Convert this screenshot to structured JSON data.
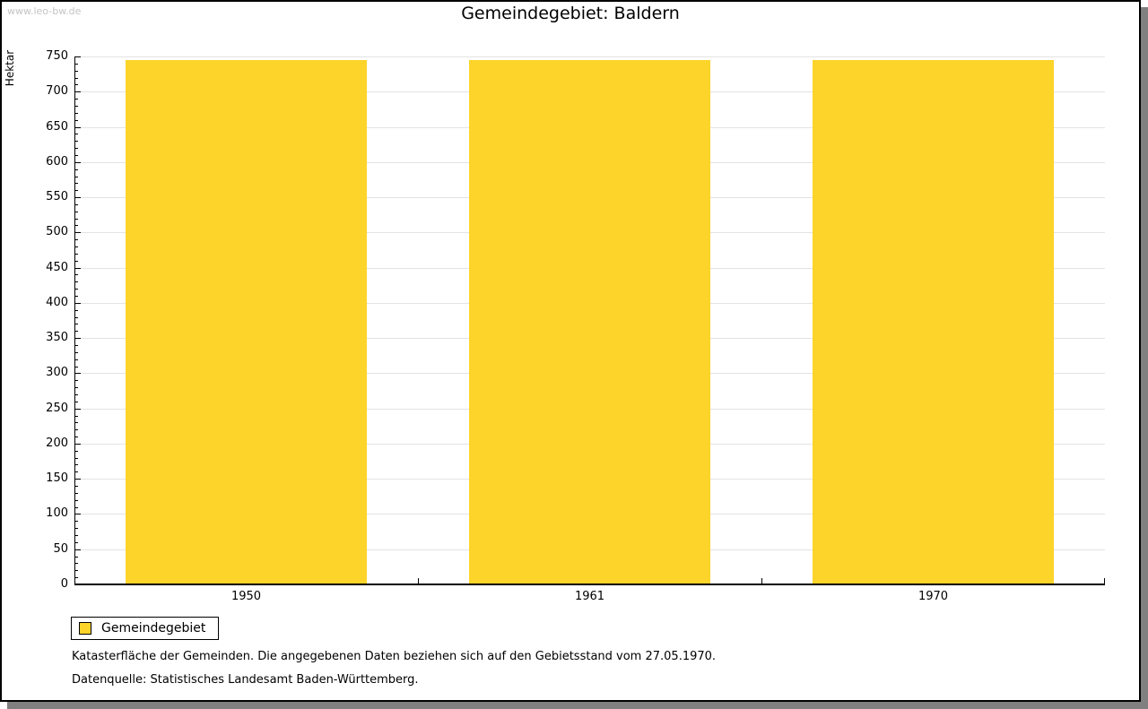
{
  "watermark": "www.leo-bw.de",
  "title": "Gemeindegebiet: Baldern",
  "chart_data": {
    "type": "bar",
    "title": "Gemeindegebiet: Baldern",
    "categories": [
      "1950",
      "1961",
      "1970"
    ],
    "series": [
      {
        "name": "Gemeindegebiet",
        "values": [
          745,
          745,
          745
        ]
      }
    ],
    "xlabel": "",
    "ylabel": "Hektar",
    "ylim": [
      0,
      750
    ],
    "ytick_step": 50,
    "minor_tick_step": 10,
    "grid": true,
    "legend_position": "bottom-left",
    "bar_color": "#fcd42a"
  },
  "legend": {
    "items": [
      {
        "label": "Gemeindegebiet",
        "color": "#fcd42a"
      }
    ]
  },
  "footnotes": [
    "Katasterfläche der Gemeinden. Die angegebenen Daten beziehen sich auf den Gebietsstand vom 27.05.1970.",
    "Datenquelle: Statistisches Landesamt Baden-Württemberg."
  ],
  "colors": {
    "bar": "#fcd42a",
    "grid": "#e3e3e3",
    "axis": "#000000",
    "watermark": "#c4c4c4",
    "shadow": "#808080"
  }
}
